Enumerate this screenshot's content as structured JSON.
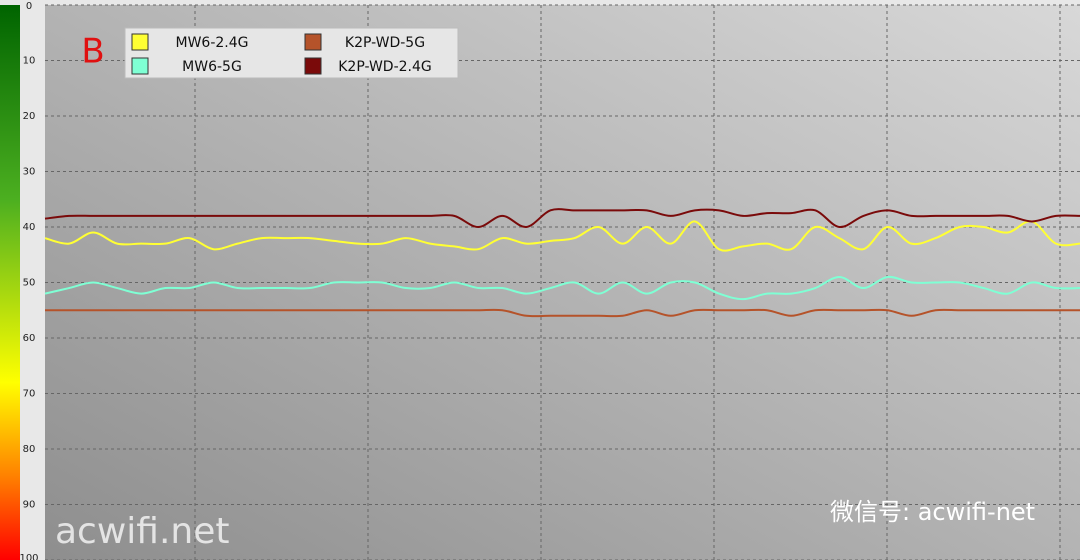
{
  "chart_data": {
    "type": "line",
    "annotation": "B",
    "watermarks": [
      "acwifi.net",
      "微信号: acwifi-net"
    ],
    "categories": [
      null,
      null,
      null,
      null,
      null,
      null,
      null,
      null,
      null,
      null,
      null,
      null,
      null,
      null,
      null,
      null,
      null,
      null,
      null,
      null,
      null,
      null,
      null,
      null,
      null,
      null,
      null,
      null,
      null,
      null,
      null,
      null,
      null,
      null,
      null,
      null,
      null,
      null,
      null,
      null,
      null,
      null,
      null,
      null
    ],
    "ylim": [
      0,
      100
    ],
    "y_inverted": true,
    "yticks": [
      0,
      10,
      20,
      30,
      40,
      50,
      60,
      70,
      80,
      90,
      100
    ],
    "grid": true,
    "series": [
      {
        "name": "MW6-2.4G",
        "color": "#ffff33",
        "values": [
          42,
          43,
          41,
          43,
          43,
          43,
          42,
          44,
          43,
          42,
          42,
          42,
          42.5,
          43,
          43,
          42,
          43,
          43.5,
          44,
          42,
          43,
          42.5,
          42,
          40,
          43,
          40,
          43,
          39,
          44,
          43.5,
          43,
          44,
          40,
          42,
          44,
          40,
          43,
          42,
          40,
          40,
          41,
          39,
          43,
          43
        ]
      },
      {
        "name": "K2P-WD-5G",
        "color": "#b5532a",
        "values": [
          55,
          55,
          55,
          55,
          55,
          55,
          55,
          55,
          55,
          55,
          55,
          55,
          55,
          55,
          55,
          55,
          55,
          55,
          55,
          55,
          56,
          56,
          56,
          56,
          56,
          55,
          56,
          55,
          55,
          55,
          55,
          56,
          55,
          55,
          55,
          55,
          56,
          55,
          55,
          55,
          55,
          55,
          55,
          55
        ]
      },
      {
        "name": "MW6-5G",
        "color": "#7fffd4",
        "values": [
          52,
          51,
          50,
          51,
          52,
          51,
          51,
          50,
          51,
          51,
          51,
          51,
          50,
          50,
          50,
          51,
          51,
          50,
          51,
          51,
          52,
          51,
          50,
          52,
          50,
          52,
          50,
          50,
          52,
          53,
          52,
          52,
          51,
          49,
          51,
          49,
          50,
          50,
          50,
          51,
          52,
          50,
          51,
          51
        ]
      },
      {
        "name": "K2P-WD-2.4G",
        "color": "#7a0a0a",
        "values": [
          38.5,
          38,
          38,
          38,
          38,
          38,
          38,
          38,
          38,
          38,
          38,
          38,
          38,
          38,
          38,
          38,
          38,
          38,
          40,
          38,
          40,
          37,
          37,
          37,
          37,
          37,
          38,
          37,
          37,
          38,
          37.5,
          37.5,
          37,
          40,
          38,
          37,
          38,
          38,
          38,
          38,
          38,
          39,
          38,
          38
        ]
      }
    ]
  }
}
